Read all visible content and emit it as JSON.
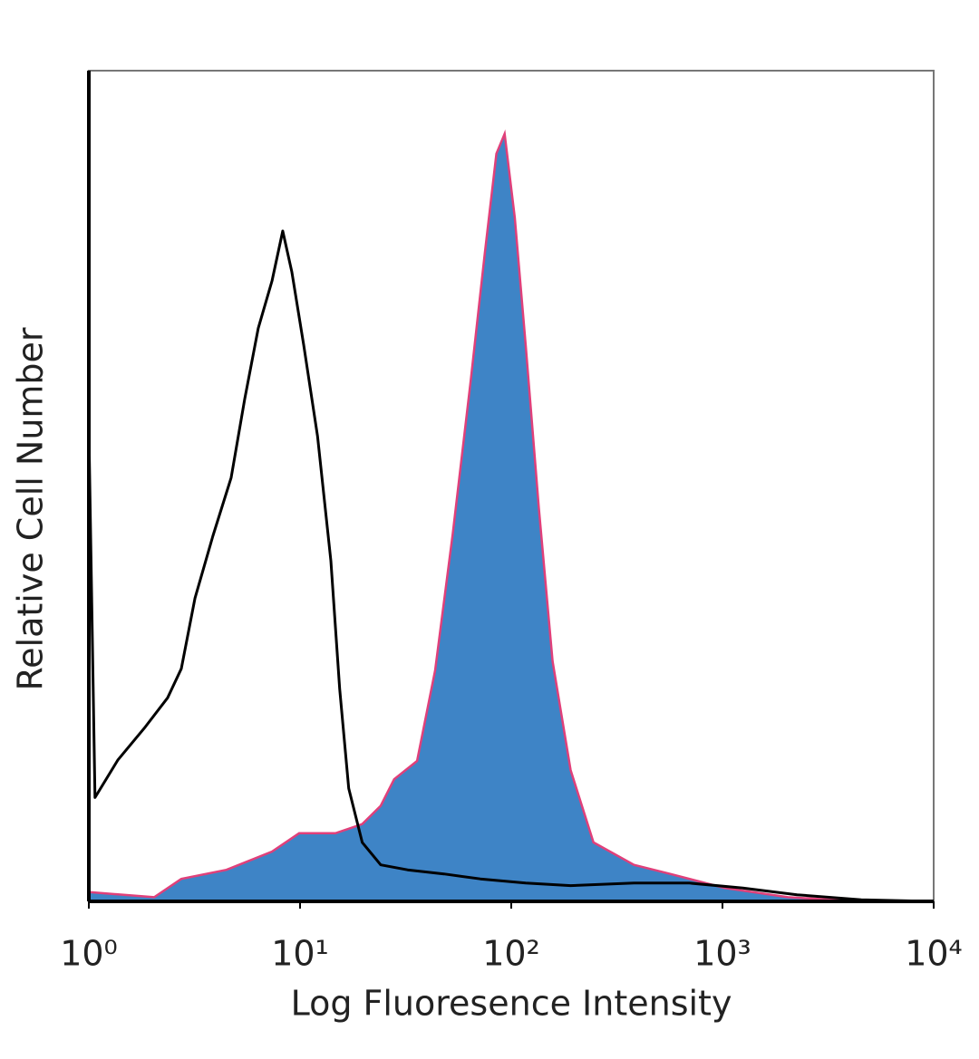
{
  "chart_data": {
    "type": "histogram-overlay",
    "xlabel": "Log Fluoresence Intensity",
    "ylabel": "Relative Cell Number",
    "xscale": "log",
    "xlim": [
      1,
      10000
    ],
    "xticks": [
      {
        "value": 1,
        "label": "10⁰"
      },
      {
        "value": 10,
        "label": "10¹"
      },
      {
        "value": 100,
        "label": "10²"
      },
      {
        "value": 1000,
        "label": "10³"
      },
      {
        "value": 10000,
        "label": "10⁴"
      }
    ],
    "ylim": [
      0,
      100
    ],
    "series": [
      {
        "color": "#3e84c6",
        "edge_color": "#e0407a",
        "filled": true,
        "x": [
          1.02,
          2.04,
          2.74,
          4.48,
          7.37,
          9.9,
          14.7,
          19.7,
          24.1,
          27.9,
          35.8,
          43.6,
          52.8,
          64.3,
          74.9,
          85.0,
          93.0,
          103.9,
          117,
          135,
          157,
          191,
          245,
          381,
          566,
          1028,
          2041,
          4544
        ],
        "values": [
          1.1,
          0.5,
          2.7,
          3.8,
          6.0,
          8.2,
          8.2,
          9.3,
          11.5,
          14.7,
          16.9,
          27.8,
          44.2,
          62.7,
          78,
          90,
          92.4,
          82.3,
          67,
          47.4,
          28.9,
          15.8,
          7.1,
          4.4,
          3.3,
          1.6,
          0.5,
          0
        ]
      },
      {
        "color": "#000000",
        "filled": false,
        "x": [
          1.0,
          1.07,
          1.37,
          1.85,
          2.36,
          2.74,
          3.18,
          3.87,
          4.72,
          5.47,
          6.34,
          7.37,
          8.28,
          9.14,
          10.4,
          12.1,
          14.0,
          15.4,
          17.0,
          19.7,
          24.1,
          32.3,
          48.0,
          71.4,
          117,
          191,
          381,
          697,
          1248,
          2256,
          4544,
          10000
        ],
        "values": [
          57,
          12.5,
          17,
          21,
          24.5,
          28,
          36.5,
          44,
          51,
          60.5,
          69,
          74.7,
          80.7,
          75.8,
          67,
          56,
          41,
          25.6,
          13.6,
          7.1,
          4.4,
          3.8,
          3.3,
          2.7,
          2.2,
          1.9,
          2.2,
          2.2,
          1.6,
          0.8,
          0.2,
          0
        ]
      }
    ]
  }
}
